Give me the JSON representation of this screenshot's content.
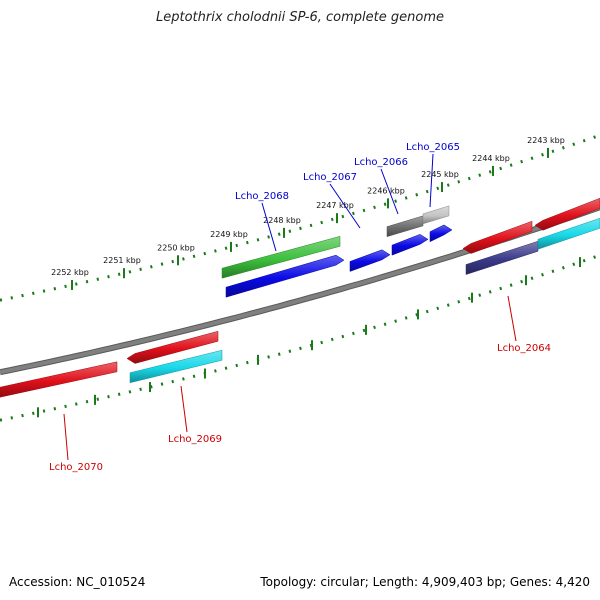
{
  "title": "Leptothrix cholodnii SP-6, complete genome",
  "footer": {
    "accession": "Accession: NC_010524",
    "summary": "Topology: circular; Length: 4,909,403 bp; Genes: 4,420"
  },
  "scale_labels": [
    "2243 kbp",
    "2244 kbp",
    "2245 kbp",
    "2246 kbp",
    "2247 kbp",
    "2248 kbp",
    "2249 kbp",
    "2250 kbp",
    "2251 kbp",
    "2252 kbp"
  ],
  "gene_labels": {
    "top": [
      "Lcho_2065",
      "Lcho_2066",
      "Lcho_2067",
      "Lcho_2068"
    ],
    "bottom": [
      "Lcho_2064",
      "Lcho_2069",
      "Lcho_2070"
    ]
  },
  "colors": {
    "label_top": "#0000cc",
    "label_bottom": "#cc0000",
    "backbone": "#808080",
    "tick": "#1a7a1a",
    "red": "#e0101a",
    "cyan": "#18d8e8",
    "blue": "#0a0ae6",
    "green": "#3cbf3c",
    "dark_gray": "#6e6e6e",
    "light_gray": "#c4c4c4",
    "navy": "#3a3a8a"
  }
}
